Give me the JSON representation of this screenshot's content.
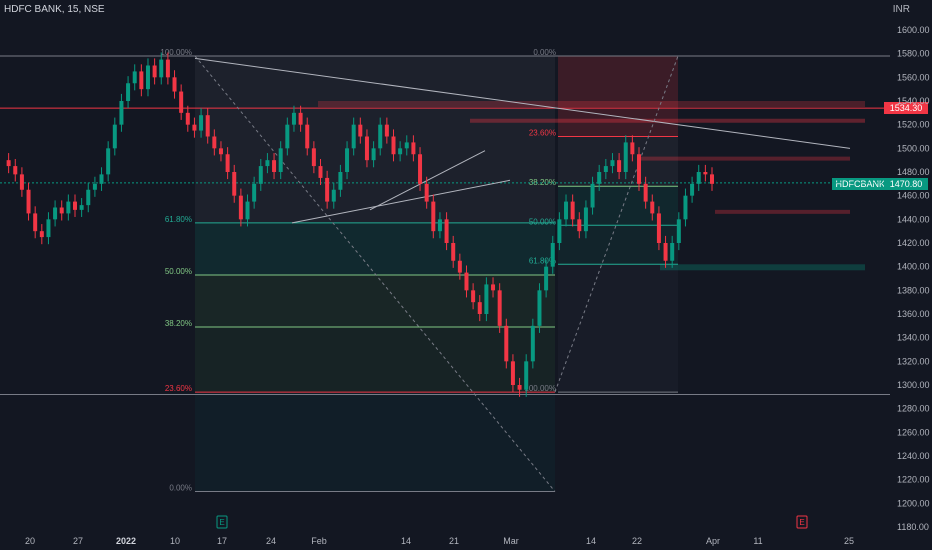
{
  "header": {
    "title": "HDFC BANK, 15, NSE",
    "currency": "INR"
  },
  "price_tags": {
    "red_label": "1534.30",
    "last_price": "1470.80",
    "symbol": "HDFCBANK"
  },
  "events": [
    {
      "label": "E",
      "color": "#089981",
      "date_label": "17"
    },
    {
      "label": "E",
      "color": "#f23645",
      "date_label": "E"
    }
  ],
  "fib_left": {
    "levels": [
      {
        "label": "100.00%",
        "price": 1578
      },
      {
        "label": "61.80%",
        "price": 1437
      },
      {
        "label": "50.00%",
        "price": 1393
      },
      {
        "label": "38.20%",
        "price": 1349
      },
      {
        "label": "23.60%",
        "price": 1294
      },
      {
        "label": "0.00%",
        "price": 1210
      }
    ]
  },
  "fib_right": {
    "levels": [
      {
        "label": "0.00%",
        "price": 1578
      },
      {
        "label": "23.60%",
        "price": 1510
      },
      {
        "label": "38.20%",
        "price": 1468
      },
      {
        "label": "50.00%",
        "price": 1435
      },
      {
        "label": "61.80%",
        "price": 1402
      },
      {
        "label": "100.00%",
        "price": 1294
      }
    ]
  },
  "chart_data": {
    "type": "line",
    "title": "HDFC BANK, 15, NSE",
    "ylabel": "INR",
    "ylim": [
      1180,
      1620
    ],
    "y_ticks": [
      1180,
      1200,
      1220,
      1240,
      1260,
      1280,
      1300,
      1320,
      1340,
      1360,
      1380,
      1400,
      1420,
      1440,
      1460,
      1480,
      1500,
      1520,
      1540,
      1560,
      1580,
      1600
    ],
    "x_ticks": [
      "20",
      "27",
      "2022",
      "10",
      "17",
      "24",
      "Feb",
      "14",
      "21",
      "Mar",
      "14",
      "22",
      "Apr",
      "11",
      "25"
    ],
    "series": [
      {
        "values": [
          [
            0,
            1490
          ],
          [
            1,
            1485
          ],
          [
            2,
            1478
          ],
          [
            3,
            1465
          ],
          [
            4,
            1445
          ],
          [
            5,
            1430
          ],
          [
            6,
            1425
          ],
          [
            7,
            1440
          ],
          [
            8,
            1450
          ],
          [
            9,
            1445
          ],
          [
            10,
            1455
          ],
          [
            11,
            1448
          ],
          [
            12,
            1452
          ],
          [
            13,
            1465
          ],
          [
            14,
            1470
          ],
          [
            15,
            1478
          ],
          [
            16,
            1500
          ],
          [
            17,
            1520
          ],
          [
            18,
            1540
          ],
          [
            19,
            1555
          ],
          [
            20,
            1565
          ],
          [
            21,
            1550
          ],
          [
            22,
            1570
          ],
          [
            23,
            1560
          ],
          [
            24,
            1575
          ],
          [
            25,
            1560
          ],
          [
            26,
            1548
          ],
          [
            27,
            1530
          ],
          [
            28,
            1520
          ],
          [
            29,
            1515
          ],
          [
            30,
            1528
          ],
          [
            31,
            1510
          ],
          [
            32,
            1500
          ],
          [
            33,
            1495
          ],
          [
            34,
            1480
          ],
          [
            35,
            1460
          ],
          [
            36,
            1440
          ],
          [
            37,
            1455
          ],
          [
            38,
            1470
          ],
          [
            39,
            1485
          ],
          [
            40,
            1490
          ],
          [
            41,
            1480
          ],
          [
            42,
            1500
          ],
          [
            43,
            1520
          ],
          [
            44,
            1530
          ],
          [
            45,
            1520
          ],
          [
            46,
            1500
          ],
          [
            47,
            1485
          ],
          [
            48,
            1475
          ],
          [
            49,
            1455
          ],
          [
            50,
            1465
          ],
          [
            51,
            1480
          ],
          [
            52,
            1500
          ],
          [
            53,
            1520
          ],
          [
            54,
            1510
          ],
          [
            55,
            1490
          ],
          [
            56,
            1500
          ],
          [
            57,
            1520
          ],
          [
            58,
            1510
          ],
          [
            59,
            1495
          ],
          [
            60,
            1500
          ],
          [
            61,
            1505
          ],
          [
            62,
            1495
          ],
          [
            63,
            1470
          ],
          [
            64,
            1455
          ],
          [
            65,
            1430
          ],
          [
            66,
            1440
          ],
          [
            67,
            1420
          ],
          [
            68,
            1405
          ],
          [
            69,
            1395
          ],
          [
            70,
            1380
          ],
          [
            71,
            1370
          ],
          [
            72,
            1360
          ],
          [
            73,
            1385
          ],
          [
            74,
            1380
          ],
          [
            75,
            1350
          ],
          [
            76,
            1320
          ],
          [
            77,
            1300
          ],
          [
            78,
            1296
          ],
          [
            79,
            1320
          ],
          [
            80,
            1350
          ],
          [
            81,
            1380
          ],
          [
            82,
            1400
          ],
          [
            83,
            1420
          ],
          [
            84,
            1440
          ],
          [
            85,
            1455
          ],
          [
            86,
            1440
          ],
          [
            87,
            1430
          ],
          [
            88,
            1450
          ],
          [
            89,
            1470
          ],
          [
            90,
            1480
          ],
          [
            91,
            1485
          ],
          [
            92,
            1490
          ],
          [
            93,
            1480
          ],
          [
            94,
            1505
          ],
          [
            95,
            1495
          ],
          [
            96,
            1470
          ],
          [
            97,
            1455
          ],
          [
            98,
            1445
          ],
          [
            99,
            1420
          ],
          [
            100,
            1405
          ],
          [
            101,
            1420
          ],
          [
            102,
            1440
          ],
          [
            103,
            1460
          ],
          [
            104,
            1470
          ],
          [
            105,
            1480
          ],
          [
            106,
            1478
          ],
          [
            107,
            1470
          ]
        ]
      }
    ],
    "annotations": [
      "100.00%",
      "61.80%",
      "50.00%",
      "38.20%",
      "23.60%",
      "0.00%"
    ]
  }
}
